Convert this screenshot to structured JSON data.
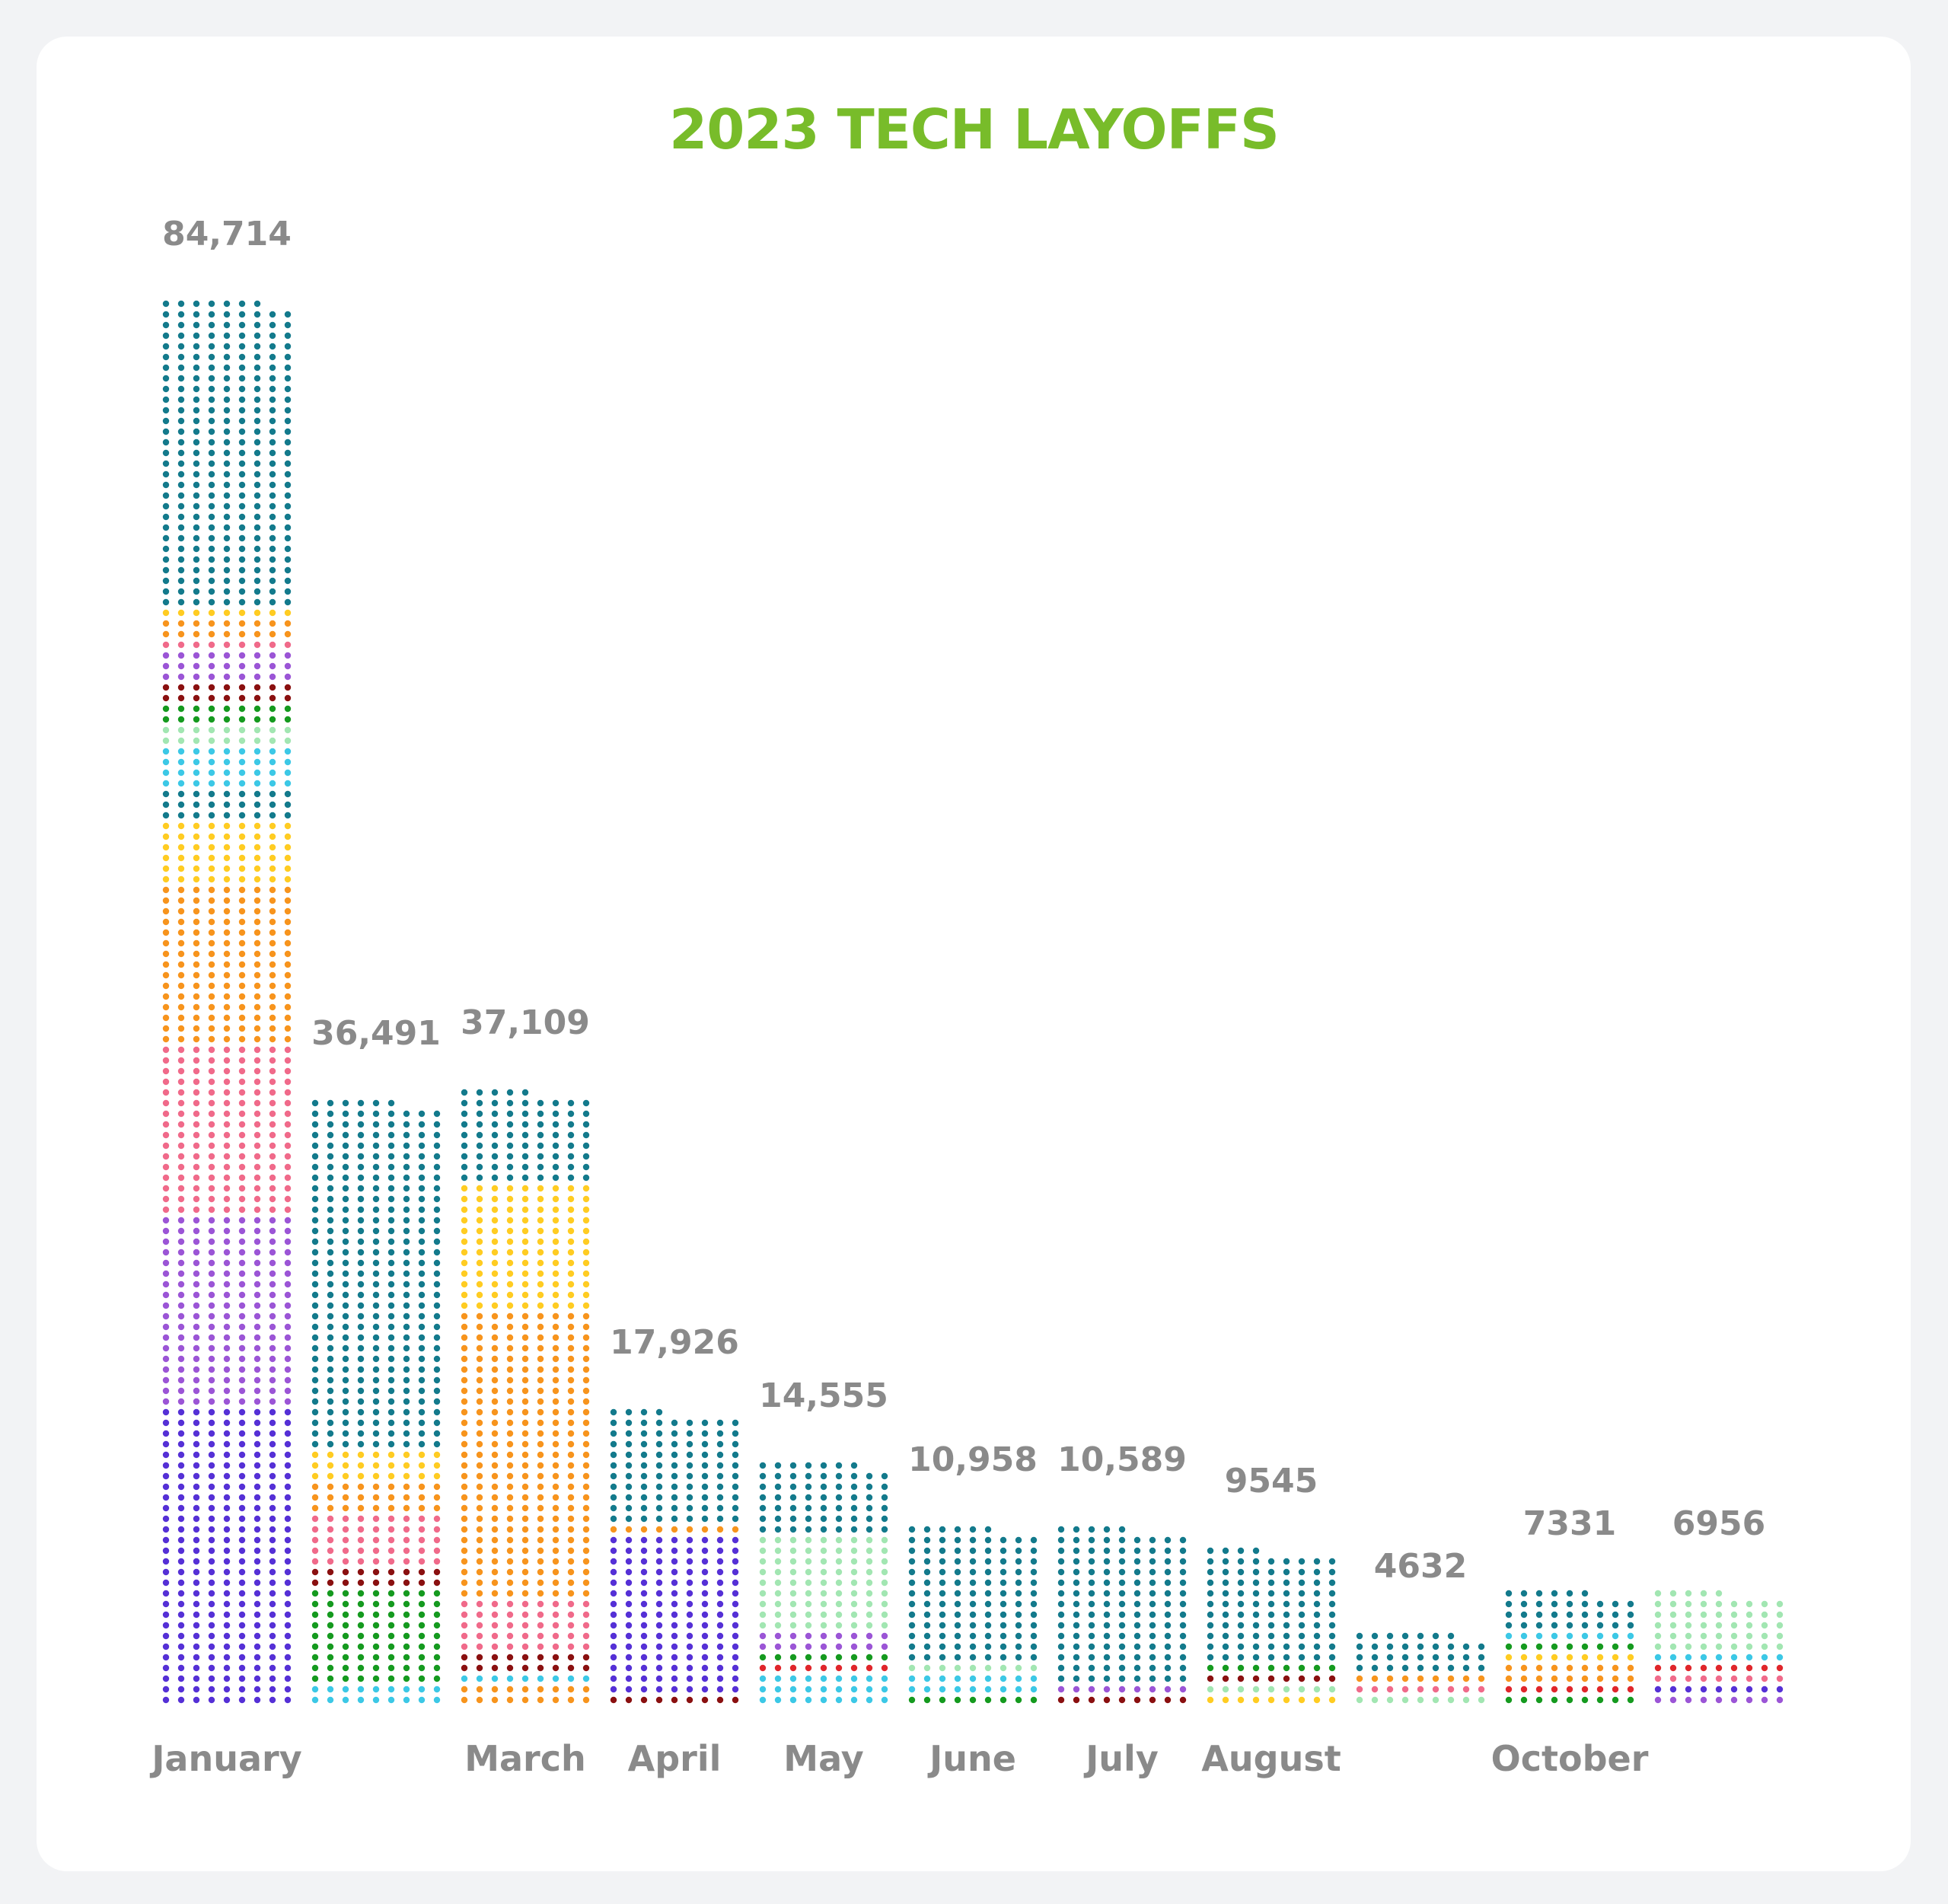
{
  "chart_data": {
    "type": "bar",
    "title": "2023 TECH LAYOFFS",
    "xlabel": "",
    "ylabel": "",
    "ylim": [
      0,
      84714
    ],
    "categories": [
      "January",
      "",
      "March",
      "April",
      "May",
      "June",
      "July",
      "August",
      "",
      "October",
      ""
    ],
    "values": [
      84714,
      36491,
      37109,
      17926,
      14555,
      10958,
      10589,
      9545,
      4632,
      7331,
      6956
    ],
    "value_labels": [
      "84,714",
      "36,491",
      "37,109",
      "17,926",
      "14,555",
      "10,958",
      "10,589",
      "9545",
      "4632",
      "7331",
      "6956"
    ],
    "grid": false,
    "legend": "none",
    "colors": {
      "title": "#78bc2a",
      "text": "#8a8a8a",
      "teal": "#137a8c",
      "orange": "#f7941d",
      "pink": "#f06a8a",
      "purple": "#9b55d6",
      "indigo": "#5530d6",
      "yellow": "#ffcc22",
      "green": "#159a1f",
      "mint": "#a2e6b2",
      "cyan": "#3cc8e6",
      "blue": "#2a9de0",
      "maroon": "#8a1010",
      "red": "#e0262b"
    },
    "stacks": [
      [
        [
          "indigo",
          0.21
        ],
        [
          "purple",
          0.14
        ],
        [
          "pink",
          0.12
        ],
        [
          "orange",
          0.11
        ],
        [
          "yellow",
          0.05
        ],
        [
          "teal",
          0.02
        ],
        [
          "cyan",
          0.03
        ],
        [
          "mint",
          0.02
        ],
        [
          "green",
          0.01
        ],
        [
          "maroon",
          0.02
        ],
        [
          "purple",
          0.02
        ],
        [
          "pink",
          0.01
        ],
        [
          "orange",
          0.01
        ],
        [
          "yellow",
          0.01
        ],
        [
          "teal",
          0.22
        ]
      ],
      [
        [
          "cyan",
          0.03
        ],
        [
          "green",
          0.16
        ],
        [
          "maroon",
          0.04
        ],
        [
          "pink",
          0.08
        ],
        [
          "orange",
          0.05
        ],
        [
          "yellow",
          0.06
        ],
        [
          "teal",
          0.58
        ]
      ],
      [
        [
          "orange",
          0.03
        ],
        [
          "cyan",
          0.03
        ],
        [
          "maroon",
          0.03
        ],
        [
          "pink",
          0.09
        ],
        [
          "orange",
          0.45
        ],
        [
          "yellow",
          0.22
        ],
        [
          "teal",
          0.15
        ]
      ],
      [
        [
          "maroon",
          0.03
        ],
        [
          "indigo",
          0.55
        ],
        [
          "orange",
          0.04
        ],
        [
          "teal",
          0.38
        ]
      ],
      [
        [
          "cyan",
          0.12
        ],
        [
          "red",
          0.05
        ],
        [
          "green",
          0.04
        ],
        [
          "purple",
          0.08
        ],
        [
          "mint",
          0.4
        ],
        [
          "teal",
          0.31
        ]
      ],
      [
        [
          "green",
          0.08
        ],
        [
          "cyan",
          0.08
        ],
        [
          "mint",
          0.06
        ],
        [
          "red",
          0.04
        ],
        [
          "teal",
          0.74
        ]
      ],
      [
        [
          "maroon",
          0.05
        ],
        [
          "purple",
          0.04
        ],
        [
          "orange",
          0.05
        ],
        [
          "teal",
          0.86
        ]
      ],
      [
        [
          "yellow",
          0.04
        ],
        [
          "cyan",
          0.04
        ],
        [
          "mint",
          0.05
        ],
        [
          "maroon",
          0.04
        ],
        [
          "purple",
          0.05
        ],
        [
          "green",
          0.04
        ],
        [
          "teal",
          0.74
        ]
      ],
      [
        [
          "mint",
          0.18
        ],
        [
          "pink",
          0.12
        ],
        [
          "orange",
          0.08
        ],
        [
          "teal",
          0.62
        ]
      ],
      [
        [
          "green",
          0.06
        ],
        [
          "red",
          0.08
        ],
        [
          "purple",
          0.08
        ],
        [
          "orange",
          0.14
        ],
        [
          "yellow",
          0.1
        ],
        [
          "green",
          0.06
        ],
        [
          "cyan",
          0.08
        ],
        [
          "teal",
          0.4
        ]
      ],
      [
        [
          "purple",
          0.08
        ],
        [
          "indigo",
          0.07
        ],
        [
          "yellow",
          0.06
        ],
        [
          "pink",
          0.08
        ],
        [
          "red",
          0.06
        ],
        [
          "green",
          0.05
        ],
        [
          "cyan",
          0.08
        ],
        [
          "mint",
          0.52
        ]
      ]
    ]
  }
}
